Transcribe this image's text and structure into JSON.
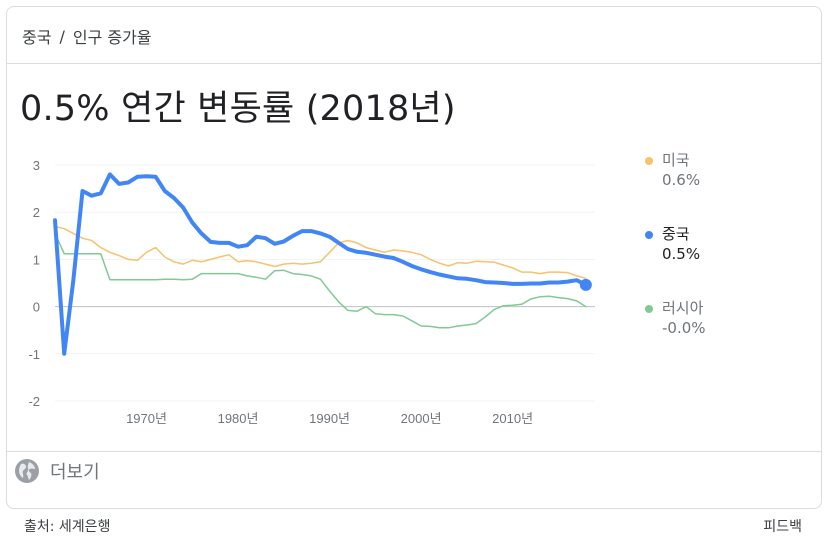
{
  "breadcrumb": {
    "country": "중국",
    "separator": "/",
    "topic": "인구 증가율"
  },
  "headline": "0.5% 연간 변동률 (2018년)",
  "more_label": "더보기",
  "footer": {
    "source": "출처: 세계은행",
    "feedback": "피드백"
  },
  "legend": [
    {
      "name": "미국",
      "value": "0.6%",
      "color": "#f6c26b"
    },
    {
      "name": "중국",
      "value": "0.5%",
      "color": "#4285f4"
    },
    {
      "name": "러시아",
      "value": "-0.0%",
      "color": "#81c995"
    }
  ],
  "chart_data": {
    "type": "line",
    "ylim": [
      -2,
      3
    ],
    "xlim": [
      1960,
      2019
    ],
    "y_ticks": [
      "3",
      "2",
      "1",
      "0",
      "-1",
      "-2"
    ],
    "x_ticks": [
      "1970년",
      "1980년",
      "1990년",
      "2000년",
      "2010년"
    ],
    "grid": true,
    "series": [
      {
        "name": "미국",
        "color": "#f6c26b",
        "x": [
          1960,
          1961,
          1962,
          1963,
          1964,
          1965,
          1966,
          1967,
          1968,
          1969,
          1970,
          1971,
          1972,
          1973,
          1974,
          1975,
          1976,
          1977,
          1978,
          1979,
          1980,
          1981,
          1982,
          1983,
          1984,
          1985,
          1986,
          1987,
          1988,
          1989,
          1990,
          1991,
          1992,
          1993,
          1994,
          1995,
          1996,
          1997,
          1998,
          1999,
          2000,
          2001,
          2002,
          2003,
          2004,
          2005,
          2006,
          2007,
          2008,
          2009,
          2010,
          2011,
          2012,
          2013,
          2014,
          2015,
          2016,
          2017,
          2018
        ],
        "y": [
          1.7,
          1.65,
          1.55,
          1.45,
          1.4,
          1.25,
          1.15,
          1.08,
          1.0,
          0.98,
          1.15,
          1.25,
          1.05,
          0.95,
          0.9,
          0.98,
          0.95,
          1.0,
          1.05,
          1.1,
          0.95,
          0.97,
          0.95,
          0.9,
          0.85,
          0.9,
          0.92,
          0.9,
          0.92,
          0.95,
          1.15,
          1.35,
          1.4,
          1.35,
          1.25,
          1.2,
          1.15,
          1.2,
          1.18,
          1.15,
          1.1,
          1.0,
          0.92,
          0.86,
          0.93,
          0.92,
          0.96,
          0.95,
          0.94,
          0.88,
          0.82,
          0.73,
          0.73,
          0.7,
          0.73,
          0.73,
          0.72,
          0.65,
          0.6
        ]
      },
      {
        "name": "중국",
        "color": "#4285f4",
        "x": [
          1960,
          1961,
          1962,
          1963,
          1964,
          1965,
          1966,
          1967,
          1968,
          1969,
          1970,
          1971,
          1972,
          1973,
          1974,
          1975,
          1976,
          1977,
          1978,
          1979,
          1980,
          1981,
          1982,
          1983,
          1984,
          1985,
          1986,
          1987,
          1988,
          1989,
          1990,
          1991,
          1992,
          1993,
          1994,
          1995,
          1996,
          1997,
          1998,
          1999,
          2000,
          2001,
          2002,
          2003,
          2004,
          2005,
          2006,
          2007,
          2008,
          2009,
          2010,
          2011,
          2012,
          2013,
          2014,
          2015,
          2016,
          2017,
          2018
        ],
        "y": [
          1.83,
          -1.0,
          0.55,
          2.45,
          2.35,
          2.4,
          2.8,
          2.6,
          2.63,
          2.75,
          2.76,
          2.75,
          2.45,
          2.3,
          2.1,
          1.78,
          1.55,
          1.37,
          1.35,
          1.35,
          1.27,
          1.3,
          1.48,
          1.45,
          1.33,
          1.38,
          1.5,
          1.6,
          1.6,
          1.55,
          1.48,
          1.35,
          1.22,
          1.16,
          1.14,
          1.1,
          1.06,
          1.03,
          0.95,
          0.86,
          0.79,
          0.73,
          0.68,
          0.64,
          0.6,
          0.59,
          0.56,
          0.52,
          0.51,
          0.5,
          0.48,
          0.48,
          0.49,
          0.49,
          0.51,
          0.51,
          0.53,
          0.56,
          0.46
        ]
      },
      {
        "name": "러시아",
        "color": "#81c995",
        "x": [
          1960,
          1961,
          1962,
          1963,
          1964,
          1965,
          1966,
          1967,
          1968,
          1969,
          1970,
          1971,
          1972,
          1973,
          1974,
          1975,
          1976,
          1977,
          1978,
          1979,
          1980,
          1981,
          1982,
          1983,
          1984,
          1985,
          1986,
          1987,
          1988,
          1989,
          1990,
          1991,
          1992,
          1993,
          1994,
          1995,
          1996,
          1997,
          1998,
          1999,
          2000,
          2001,
          2002,
          2003,
          2004,
          2005,
          2006,
          2007,
          2008,
          2009,
          2010,
          2011,
          2012,
          2013,
          2014,
          2015,
          2016,
          2017,
          2018
        ],
        "y": [
          1.55,
          1.12,
          1.12,
          1.12,
          1.12,
          1.12,
          0.57,
          0.57,
          0.57,
          0.57,
          0.57,
          0.57,
          0.58,
          0.58,
          0.57,
          0.58,
          0.7,
          0.7,
          0.7,
          0.7,
          0.7,
          0.65,
          0.62,
          0.58,
          0.76,
          0.77,
          0.7,
          0.68,
          0.65,
          0.58,
          0.33,
          0.1,
          -0.08,
          -0.1,
          0.0,
          -0.15,
          -0.17,
          -0.17,
          -0.2,
          -0.3,
          -0.41,
          -0.42,
          -0.45,
          -0.45,
          -0.41,
          -0.39,
          -0.36,
          -0.22,
          -0.06,
          0.02,
          0.03,
          0.05,
          0.16,
          0.21,
          0.22,
          0.19,
          0.17,
          0.12,
          0.0
        ]
      }
    ]
  }
}
